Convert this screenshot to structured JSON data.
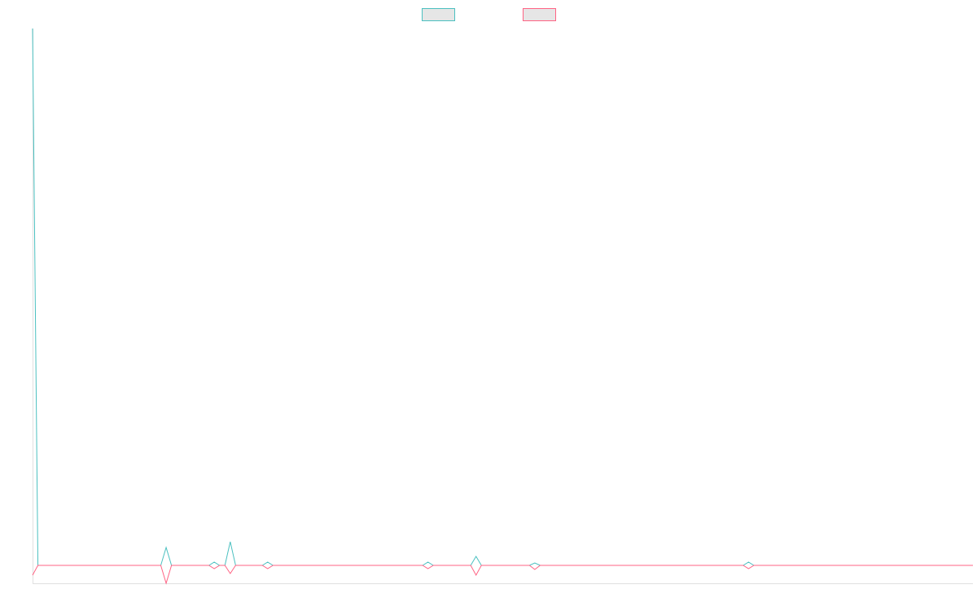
{
  "chart_data": {
    "type": "line",
    "ylim": [
      -2.2,
      65.9
    ],
    "legend": "top",
    "series": [
      {
        "color": "#4bc0c0",
        "values": [
          65.9,
          0,
          0,
          0,
          0,
          0,
          0,
          0,
          0,
          0,
          0,
          0,
          0,
          0,
          0,
          0,
          0,
          0,
          0,
          0,
          0,
          0,
          0,
          0,
          0,
          2.2,
          0,
          0,
          0,
          0,
          0,
          0,
          0,
          0,
          0.4,
          0,
          0,
          2.9,
          0,
          0,
          0,
          0,
          0,
          0,
          0.4,
          0,
          0,
          0,
          0,
          0,
          0,
          0,
          0,
          0,
          0,
          0,
          0,
          0,
          0,
          0,
          0,
          0,
          0,
          0,
          0,
          0,
          0,
          0,
          0,
          0,
          0,
          0,
          0,
          0,
          0.4,
          0,
          0,
          0,
          0,
          0,
          0,
          0,
          0,
          1.1,
          0,
          0,
          0,
          0,
          0,
          0,
          0,
          0,
          0,
          0,
          0.3,
          0,
          0,
          0,
          0,
          0,
          0,
          0,
          0,
          0,
          0,
          0,
          0,
          0,
          0,
          0,
          0,
          0,
          0,
          0,
          0,
          0,
          0,
          0,
          0,
          0,
          0,
          0,
          0,
          0,
          0,
          0,
          0,
          0,
          0,
          0,
          0,
          0,
          0,
          0,
          0.4,
          0,
          0,
          0,
          0,
          0,
          0,
          0,
          0,
          0,
          0,
          0,
          0,
          0,
          0,
          0,
          0,
          0,
          0,
          0,
          0,
          0,
          0,
          0,
          0,
          0,
          0,
          0,
          0,
          0,
          0,
          0,
          0,
          0,
          0,
          0,
          0,
          0,
          0,
          0,
          0,
          0,
          0
        ]
      },
      {
        "color": "#ff6384",
        "values": [
          -1.2,
          0,
          0,
          0,
          0,
          0,
          0,
          0,
          0,
          0,
          0,
          0,
          0,
          0,
          0,
          0,
          0,
          0,
          0,
          0,
          0,
          0,
          0,
          0,
          0,
          -2.2,
          0,
          0,
          0,
          0,
          0,
          0,
          0,
          0,
          -0.4,
          0,
          0,
          -1,
          0,
          0,
          0,
          0,
          0,
          0,
          -0.4,
          0,
          0,
          0,
          0,
          0,
          0,
          0,
          0,
          0,
          0,
          0,
          0,
          0,
          0,
          0,
          0,
          0,
          0,
          0,
          0,
          0,
          0,
          0,
          0,
          0,
          0,
          0,
          0,
          0,
          -0.4,
          0,
          0,
          0,
          0,
          0,
          0,
          0,
          0,
          -1.2,
          0,
          0,
          0,
          0,
          0,
          0,
          0,
          0,
          0,
          0,
          -0.5,
          0,
          0,
          0,
          0,
          0,
          0,
          0,
          0,
          0,
          0,
          0,
          0,
          0,
          0,
          0,
          0,
          0,
          0,
          0,
          0,
          0,
          0,
          0,
          0,
          0,
          0,
          0,
          0,
          0,
          0,
          0,
          0,
          0,
          0,
          0,
          0,
          0,
          0,
          0,
          -0.4,
          0,
          0,
          0,
          0,
          0,
          0,
          0,
          0,
          0,
          0,
          0,
          0,
          0,
          0,
          0,
          0,
          0,
          0,
          0,
          0,
          0,
          0,
          0,
          0,
          0,
          0,
          0,
          0,
          0,
          0,
          0,
          0,
          0,
          0,
          0,
          0,
          0,
          0,
          0,
          0,
          0,
          0
        ]
      }
    ]
  }
}
